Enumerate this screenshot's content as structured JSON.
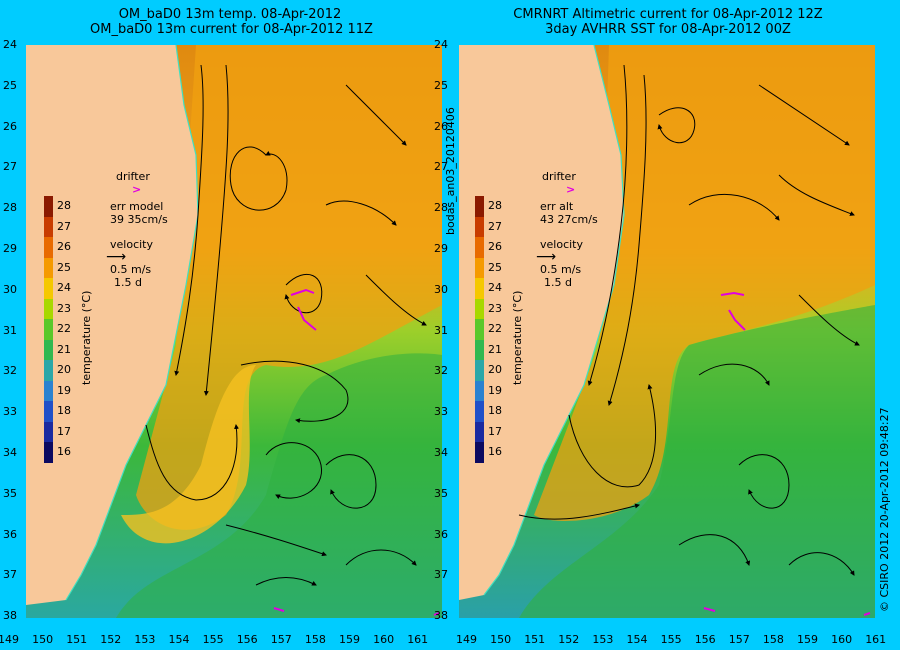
{
  "left_panel": {
    "title_line1": "OM_baD0 13m temp. 08-Apr-2012",
    "title_line2": "OM_baD0 13m current for 08-Apr-2012 11Z",
    "legend": {
      "drifter_label": "drifter",
      "err_label": "err model",
      "err_value": "39 35cm/s",
      "velocity_label": "velocity",
      "velocity_value": "0.5 m/s",
      "velocity_time": "1.5 d"
    }
  },
  "right_panel": {
    "title_line1": "CMRNRT Altimetric current for 08-Apr-2012 12Z",
    "title_line2": "3day AVHRR SST for 08-Apr-2012 00Z",
    "legend": {
      "drifter_label": "drifter",
      "err_label": "err alt",
      "err_value": "43 27cm/s",
      "velocity_label": "velocity",
      "velocity_value": "0.5 m/s",
      "velocity_time": "1.5 d"
    }
  },
  "colorbar": {
    "label": "temperature (°C)",
    "ticks": [
      "28",
      "27",
      "26",
      "25",
      "24",
      "23",
      "22",
      "21",
      "20",
      "19",
      "18",
      "17",
      "16"
    ],
    "colors": [
      "#8b1a00",
      "#c83c00",
      "#e86a00",
      "#f59a00",
      "#f5c800",
      "#a8d800",
      "#5ac82a",
      "#30b850",
      "#2aa7a8",
      "#2a82d0",
      "#2050c8",
      "#1a2aa0",
      "#0c0a60"
    ]
  },
  "axes": {
    "lat_ticks": [
      "24",
      "25",
      "26",
      "27",
      "28",
      "29",
      "30",
      "31",
      "32",
      "33",
      "34",
      "35",
      "36",
      "37",
      "38"
    ],
    "lon_ticks": [
      "149",
      "150",
      "151",
      "152",
      "153",
      "154",
      "155",
      "156",
      "157",
      "158",
      "159",
      "160",
      "161"
    ]
  },
  "side_labels": {
    "run_id": "bodas_an03_20120406",
    "footer": "© CSIRO 2012  20-Apr-2012 09:48:27"
  },
  "colors": {
    "background": "#00ccff",
    "land": "#f8c89a",
    "drifter": "#e000e0",
    "coastline_track": "#40e0c0"
  }
}
